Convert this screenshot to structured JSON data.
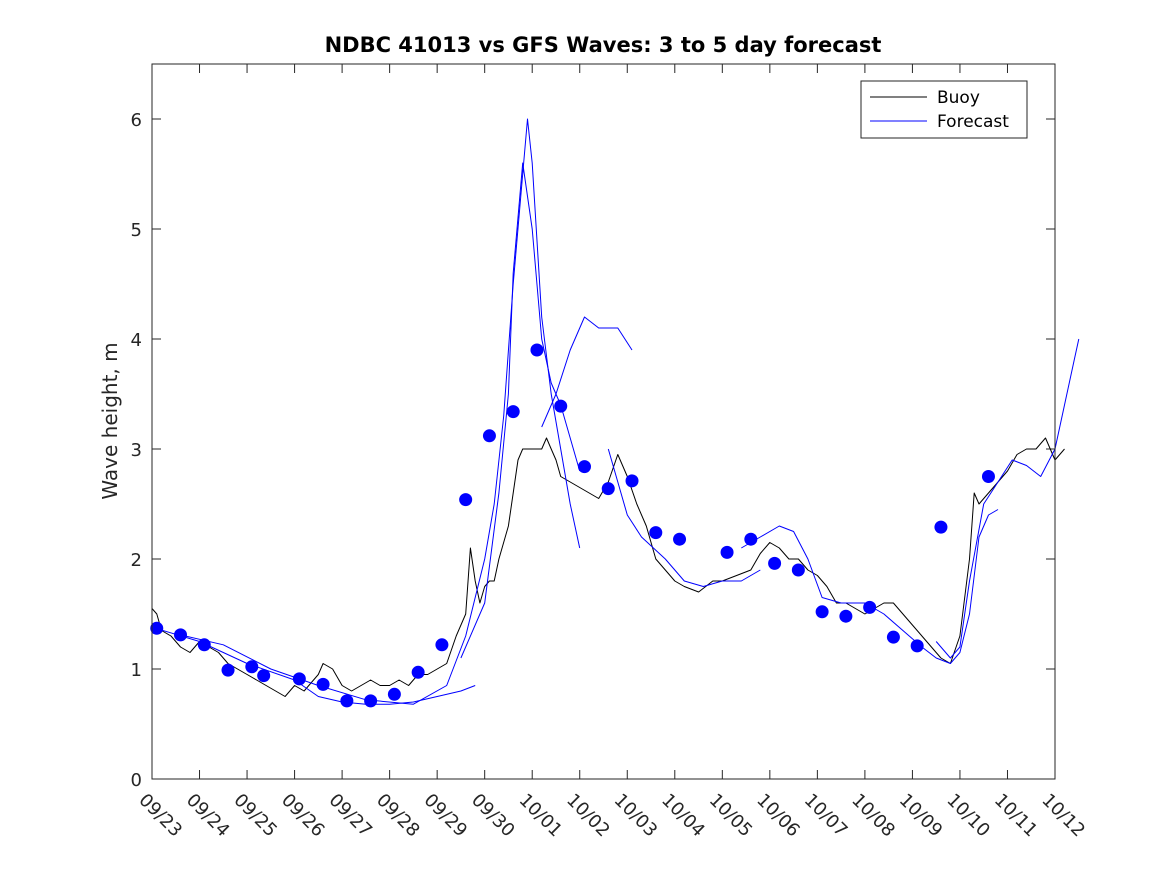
{
  "chart_data": {
    "type": "line",
    "title": "NDBC 41013 vs GFS Waves: 3 to 5 day forecast",
    "xlabel": "",
    "ylabel": "Wave height, m",
    "ylim": [
      0,
      6.5
    ],
    "xlim": [
      0,
      19
    ],
    "yticks": [
      0,
      1,
      2,
      3,
      4,
      5,
      6
    ],
    "xtick_labels": [
      "09/23",
      "09/24",
      "09/25",
      "09/26",
      "09/27",
      "09/28",
      "09/29",
      "09/30",
      "10/01",
      "10/02",
      "10/03",
      "10/04",
      "10/05",
      "10/06",
      "10/07",
      "10/08",
      "10/09",
      "10/10",
      "10/11",
      "10/12"
    ],
    "legend": {
      "position": "top-right",
      "entries": [
        {
          "label": "Buoy",
          "color": "#000000"
        },
        {
          "label": "Forecast",
          "color": "#0000ff"
        }
      ]
    },
    "colors": {
      "buoy": "#000000",
      "forecast": "#0000ff",
      "markers": "#0000ff"
    },
    "series": [
      {
        "name": "Buoy",
        "color": "#000000",
        "points": [
          [
            0,
            1.55
          ],
          [
            0.1,
            1.5
          ],
          [
            0.2,
            1.35
          ],
          [
            0.4,
            1.3
          ],
          [
            0.6,
            1.2
          ],
          [
            0.8,
            1.15
          ],
          [
            1,
            1.25
          ],
          [
            1.2,
            1.2
          ],
          [
            1.4,
            1.15
          ],
          [
            1.6,
            1.05
          ],
          [
            1.8,
            1.0
          ],
          [
            2,
            0.95
          ],
          [
            2.2,
            0.9
          ],
          [
            2.4,
            0.85
          ],
          [
            2.6,
            0.8
          ],
          [
            2.8,
            0.75
          ],
          [
            3,
            0.85
          ],
          [
            3.2,
            0.8
          ],
          [
            3.3,
            0.85
          ],
          [
            3.5,
            0.95
          ],
          [
            3.6,
            1.05
          ],
          [
            3.8,
            1.0
          ],
          [
            4,
            0.85
          ],
          [
            4.2,
            0.8
          ],
          [
            4.4,
            0.85
          ],
          [
            4.6,
            0.9
          ],
          [
            4.8,
            0.85
          ],
          [
            5,
            0.85
          ],
          [
            5.2,
            0.9
          ],
          [
            5.4,
            0.85
          ],
          [
            5.6,
            0.95
          ],
          [
            5.8,
            0.95
          ],
          [
            6,
            1.0
          ],
          [
            6.2,
            1.05
          ],
          [
            6.4,
            1.3
          ],
          [
            6.6,
            1.5
          ],
          [
            6.7,
            2.1
          ],
          [
            6.8,
            1.8
          ],
          [
            6.9,
            1.6
          ],
          [
            7,
            1.75
          ],
          [
            7.1,
            1.8
          ],
          [
            7.2,
            1.8
          ],
          [
            7.3,
            2.0
          ],
          [
            7.5,
            2.3
          ],
          [
            7.6,
            2.6
          ],
          [
            7.7,
            2.9
          ],
          [
            7.8,
            3.0
          ],
          [
            8,
            3.0
          ],
          [
            8.2,
            3.0
          ],
          [
            8.3,
            3.1
          ],
          [
            8.4,
            3.0
          ],
          [
            8.5,
            2.9
          ],
          [
            8.6,
            2.75
          ],
          [
            8.8,
            2.7
          ],
          [
            9,
            2.65
          ],
          [
            9.2,
            2.6
          ],
          [
            9.4,
            2.55
          ],
          [
            9.6,
            2.7
          ],
          [
            9.8,
            2.95
          ],
          [
            10,
            2.75
          ],
          [
            10.2,
            2.5
          ],
          [
            10.4,
            2.3
          ],
          [
            10.6,
            2.0
          ],
          [
            10.8,
            1.9
          ],
          [
            11,
            1.8
          ],
          [
            11.2,
            1.75
          ],
          [
            11.5,
            1.7
          ],
          [
            11.8,
            1.8
          ],
          [
            12,
            1.8
          ],
          [
            12.3,
            1.85
          ],
          [
            12.6,
            1.9
          ],
          [
            12.8,
            2.05
          ],
          [
            13,
            2.15
          ],
          [
            13.2,
            2.1
          ],
          [
            13.4,
            2.0
          ],
          [
            13.6,
            2.0
          ],
          [
            13.8,
            1.9
          ],
          [
            14,
            1.85
          ],
          [
            14.2,
            1.75
          ],
          [
            14.4,
            1.6
          ],
          [
            14.6,
            1.6
          ],
          [
            14.8,
            1.55
          ],
          [
            15,
            1.5
          ],
          [
            15.2,
            1.55
          ],
          [
            15.4,
            1.6
          ],
          [
            15.6,
            1.6
          ],
          [
            15.8,
            1.5
          ],
          [
            16,
            1.4
          ],
          [
            16.2,
            1.3
          ],
          [
            16.4,
            1.2
          ],
          [
            16.6,
            1.1
          ],
          [
            16.8,
            1.05
          ],
          [
            17,
            1.3
          ],
          [
            17.2,
            2.0
          ],
          [
            17.3,
            2.6
          ],
          [
            17.4,
            2.5
          ],
          [
            17.6,
            2.6
          ],
          [
            17.8,
            2.7
          ],
          [
            18,
            2.8
          ],
          [
            18.2,
            2.95
          ],
          [
            18.4,
            3.0
          ],
          [
            18.6,
            3.0
          ],
          [
            18.8,
            3.1
          ],
          [
            19,
            2.9
          ],
          [
            19.2,
            3.0
          ]
        ]
      },
      {
        "name": "Forecast 1",
        "color": "#0000ff",
        "points": [
          [
            0,
            1.38
          ],
          [
            1,
            1.25
          ],
          [
            2,
            1.05
          ],
          [
            3,
            0.9
          ],
          [
            3.5,
            0.75
          ],
          [
            4,
            0.7
          ],
          [
            4.5,
            0.68
          ],
          [
            5,
            0.68
          ],
          [
            5.5,
            0.7
          ],
          [
            6,
            0.75
          ],
          [
            6.5,
            0.8
          ],
          [
            6.8,
            0.85
          ]
        ]
      },
      {
        "name": "Forecast 2",
        "color": "#0000ff",
        "points": [
          [
            0.5,
            1.32
          ],
          [
            1.5,
            1.22
          ],
          [
            2.5,
            1.0
          ],
          [
            3.5,
            0.85
          ],
          [
            4.5,
            0.72
          ],
          [
            5.5,
            0.68
          ],
          [
            6.2,
            0.85
          ],
          [
            6.6,
            1.3
          ],
          [
            7,
            2.0
          ],
          [
            7.2,
            2.5
          ],
          [
            7.4,
            3.3
          ],
          [
            7.6,
            4.5
          ],
          [
            7.8,
            5.5
          ],
          [
            7.9,
            6.0
          ],
          [
            8,
            5.6
          ],
          [
            8.2,
            4.2
          ],
          [
            8.4,
            3.5
          ],
          [
            8.6,
            3.0
          ],
          [
            8.8,
            2.5
          ],
          [
            9,
            2.1
          ]
        ]
      },
      {
        "name": "Forecast 3",
        "color": "#0000ff",
        "points": [
          [
            6.5,
            1.1
          ],
          [
            7,
            1.6
          ],
          [
            7.3,
            2.6
          ],
          [
            7.5,
            3.5
          ],
          [
            7.6,
            4.6
          ],
          [
            7.8,
            5.6
          ],
          [
            8,
            5.0
          ],
          [
            8.2,
            4.0
          ],
          [
            8.4,
            3.6
          ],
          [
            8.6,
            3.4
          ],
          [
            8.8,
            3.1
          ],
          [
            9,
            2.8
          ]
        ]
      },
      {
        "name": "Forecast 4",
        "color": "#0000ff",
        "points": [
          [
            8.2,
            3.2
          ],
          [
            8.5,
            3.5
          ],
          [
            8.8,
            3.9
          ],
          [
            9.1,
            4.2
          ],
          [
            9.4,
            4.1
          ],
          [
            9.8,
            4.1
          ],
          [
            10.1,
            3.9
          ]
        ]
      },
      {
        "name": "Forecast 5",
        "color": "#0000ff",
        "points": [
          [
            9.6,
            3.0
          ],
          [
            9.8,
            2.7
          ],
          [
            10,
            2.4
          ],
          [
            10.3,
            2.2
          ],
          [
            10.8,
            2.0
          ],
          [
            11.2,
            1.8
          ],
          [
            11.6,
            1.75
          ],
          [
            12,
            1.8
          ],
          [
            12.4,
            1.8
          ],
          [
            12.8,
            1.9
          ]
        ]
      },
      {
        "name": "Forecast 6",
        "color": "#0000ff",
        "points": [
          [
            12.4,
            2.1
          ],
          [
            12.8,
            2.2
          ],
          [
            13.2,
            2.3
          ],
          [
            13.5,
            2.25
          ],
          [
            13.8,
            2.0
          ],
          [
            14.1,
            1.65
          ],
          [
            14.5,
            1.6
          ],
          [
            15,
            1.6
          ],
          [
            15.4,
            1.5
          ],
          [
            15.8,
            1.35
          ],
          [
            16.2,
            1.2
          ],
          [
            16.5,
            1.1
          ],
          [
            16.8,
            1.05
          ],
          [
            17,
            1.15
          ],
          [
            17.2,
            1.5
          ],
          [
            17.4,
            2.2
          ],
          [
            17.6,
            2.4
          ],
          [
            17.8,
            2.45
          ]
        ]
      },
      {
        "name": "Forecast 7",
        "color": "#0000ff",
        "points": [
          [
            16.5,
            1.25
          ],
          [
            16.8,
            1.1
          ],
          [
            17,
            1.2
          ],
          [
            17.2,
            1.8
          ],
          [
            17.5,
            2.5
          ],
          [
            17.8,
            2.7
          ],
          [
            18.1,
            2.9
          ],
          [
            18.4,
            2.85
          ],
          [
            18.7,
            2.75
          ],
          [
            19,
            3.0
          ],
          [
            19.2,
            3.4
          ],
          [
            19.4,
            3.8
          ],
          [
            19.5,
            4.0
          ]
        ]
      }
    ],
    "markers": [
      [
        0.1,
        1.37
      ],
      [
        0.6,
        1.31
      ],
      [
        1.1,
        1.22
      ],
      [
        1.6,
        0.99
      ],
      [
        2.1,
        1.02
      ],
      [
        2.35,
        0.94
      ],
      [
        3.1,
        0.91
      ],
      [
        3.6,
        0.86
      ],
      [
        4.1,
        0.71
      ],
      [
        4.6,
        0.71
      ],
      [
        5.1,
        0.77
      ],
      [
        5.6,
        0.97
      ],
      [
        6.1,
        1.22
      ],
      [
        6.6,
        2.54
      ],
      [
        7.1,
        3.12
      ],
      [
        7.6,
        3.34
      ],
      [
        8.1,
        3.9
      ],
      [
        8.6,
        3.39
      ],
      [
        9.1,
        2.84
      ],
      [
        9.6,
        2.64
      ],
      [
        10.1,
        2.71
      ],
      [
        10.6,
        2.24
      ],
      [
        11.1,
        2.18
      ],
      [
        12.1,
        2.06
      ],
      [
        12.6,
        2.18
      ],
      [
        13.1,
        1.96
      ],
      [
        13.6,
        1.9
      ],
      [
        14.1,
        1.52
      ],
      [
        14.6,
        1.48
      ],
      [
        15.1,
        1.56
      ],
      [
        15.6,
        1.29
      ],
      [
        16.1,
        1.21
      ],
      [
        16.6,
        2.29
      ],
      [
        17.6,
        2.75
      ]
    ]
  }
}
